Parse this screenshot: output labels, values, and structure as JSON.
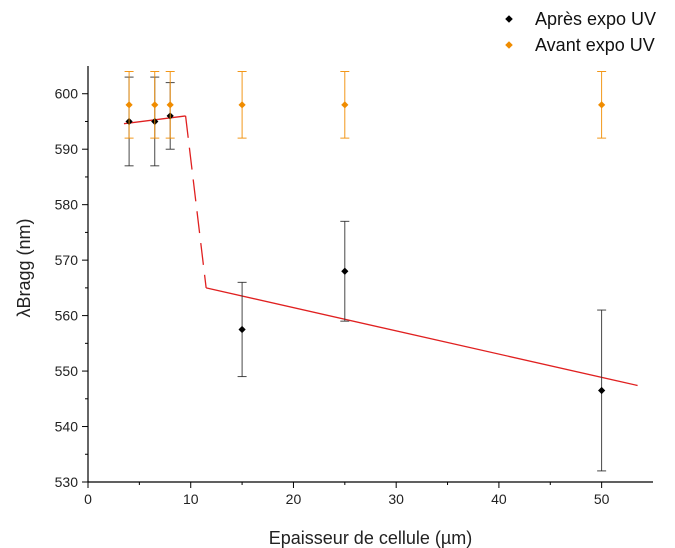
{
  "chart_data": {
    "type": "scatter",
    "title": "",
    "xlabel": "Epaisseur de cellule (µm)",
    "ylabel": "λBragg (nm)",
    "xlim": [
      0,
      55
    ],
    "ylim": [
      530,
      605
    ],
    "x_ticks": [
      0,
      10,
      20,
      30,
      40,
      50
    ],
    "y_ticks": [
      530,
      540,
      550,
      560,
      570,
      580,
      590,
      600
    ],
    "legend_position": "top-right",
    "grid": false,
    "series": [
      {
        "name": "Après expo UV",
        "color": "#000000",
        "marker": "diamond",
        "points": [
          {
            "x": 4,
            "y": 595,
            "err_low": 587,
            "err_high": 603
          },
          {
            "x": 6.5,
            "y": 595,
            "err_low": 587,
            "err_high": 603
          },
          {
            "x": 8,
            "y": 596,
            "err_low": 590,
            "err_high": 602
          },
          {
            "x": 15,
            "y": 557.5,
            "err_low": 549,
            "err_high": 566
          },
          {
            "x": 25,
            "y": 568,
            "err_low": 559,
            "err_high": 577
          },
          {
            "x": 50,
            "y": 546.5,
            "err_low": 532,
            "err_high": 561
          }
        ]
      },
      {
        "name": "Avant expo UV",
        "color": "#f08c00",
        "marker": "diamond",
        "points": [
          {
            "x": 4,
            "y": 598,
            "err_low": 592,
            "err_high": 604
          },
          {
            "x": 6.5,
            "y": 598,
            "err_low": 592,
            "err_high": 604
          },
          {
            "x": 8,
            "y": 598,
            "err_low": 592,
            "err_high": 604
          },
          {
            "x": 15,
            "y": 598,
            "err_low": 592,
            "err_high": 604
          },
          {
            "x": 25,
            "y": 598,
            "err_low": 592,
            "err_high": 604
          },
          {
            "x": 50,
            "y": 598,
            "err_low": 592,
            "err_high": 604
          }
        ]
      }
    ],
    "trend_lines": [
      {
        "style": "solid",
        "color": "#e02020",
        "points": [
          {
            "x": 3.5,
            "y": 594.6
          },
          {
            "x": 9.5,
            "y": 596
          }
        ]
      },
      {
        "style": "dashed",
        "color": "#e02020",
        "points": [
          {
            "x": 9.5,
            "y": 596
          },
          {
            "x": 11.5,
            "y": 565
          }
        ]
      },
      {
        "style": "solid",
        "color": "#e02020",
        "points": [
          {
            "x": 11.5,
            "y": 565
          },
          {
            "x": 53.5,
            "y": 547.4
          }
        ]
      }
    ]
  }
}
